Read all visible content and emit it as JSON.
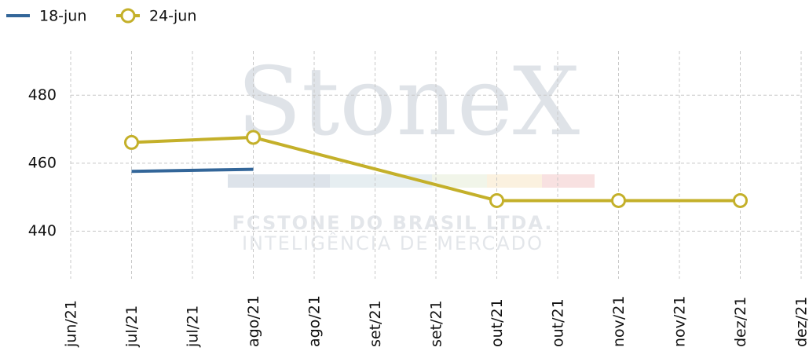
{
  "chart_data": {
    "type": "line",
    "x": [
      "jul/21",
      "ago/21",
      "out/21",
      "nov/21",
      "dez/21"
    ],
    "xticks": [
      "jun/21",
      "jul/21",
      "jul/21",
      "ago/21",
      "ago/21",
      "set/21",
      "set/21",
      "out/21",
      "out/21",
      "nov/21",
      "nov/21",
      "dez/21",
      "dez/21"
    ],
    "series": [
      {
        "name": "18-jun",
        "color": "#336699",
        "values": [
          457.6,
          458.2,
          null,
          null,
          null
        ]
      },
      {
        "name": "24-jun",
        "color": "#c4b02a",
        "values": [
          466.1,
          467.6,
          449,
          449,
          449
        ]
      }
    ],
    "ylim": [
      426,
      493
    ],
    "yticks": [
      440,
      460,
      480
    ],
    "grid": true,
    "legend": "top-left",
    "watermark": [
      "StoneX",
      "FCSTONE DO BRASIL LTDA.",
      "INTELIGÊNCIA DE MERCADO"
    ]
  }
}
